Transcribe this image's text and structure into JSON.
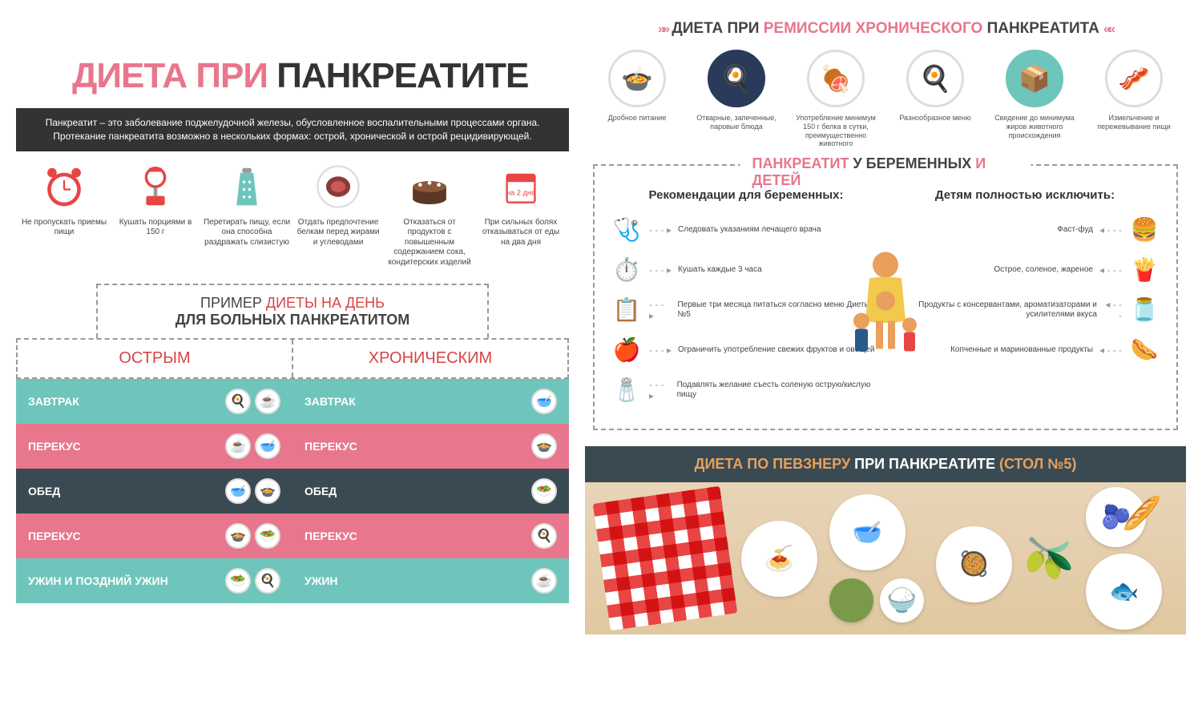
{
  "left": {
    "title_pink": "ДИЕТА ПРИ",
    "title_dark": "ПАНКРЕАТИТЕ",
    "subtitle": "Панкреатит – это заболевание поджелудочной железы, обусловленное воспалительными процессами органа. Протекание панкреатита возможно в нескольких формах: острой, хронической и острой рецидивирующей.",
    "tips": [
      {
        "icon": "clock",
        "color": "#e84545",
        "label": "Не пропускать приемы пищи"
      },
      {
        "icon": "scale",
        "color": "#e84545",
        "label": "Кушать порциями в 150 г"
      },
      {
        "icon": "grater",
        "color": "#6ec5bb",
        "label": "Перетирать пищу, если она способна раздражать слизистую"
      },
      {
        "icon": "meat",
        "color": "#8b3a3a",
        "label": "Отдать предпочтение белкам перед жирами и углеводами"
      },
      {
        "icon": "cake",
        "color": "#5a3825",
        "label": "Отказаться от продуктов с повышенным содержанием сока, кондитерских изделий"
      },
      {
        "icon": "calendar",
        "color": "#e84545",
        "label": "При сильных болях отказываться от еды на два дня"
      }
    ],
    "example_line1_a": "ПРИМЕР ",
    "example_line1_b": "ДИЕТЫ НА ДЕНЬ",
    "example_line2": "ДЛЯ БОЛЬНЫХ ПАНКРЕАТИТОМ",
    "col_acute": "ОСТРЫМ",
    "col_chronic": "ХРОНИЧЕСКИМ",
    "meals": [
      {
        "name": "ЗАВТРАК",
        "color": "mc-teal"
      },
      {
        "name": "ПЕРЕКУС",
        "color": "mc-pink"
      },
      {
        "name": "ОБЕД",
        "color": "mc-dark"
      },
      {
        "name": "ПЕРЕКУС",
        "color": "mc-pink"
      },
      {
        "name": "УЖИН И ПОЗДНИЙ УЖИН",
        "name2": "УЖИН",
        "color": "mc-teal"
      }
    ]
  },
  "right": {
    "remission_title_a": "ДИЕТА ПРИ ",
    "remission_title_b": "РЕМИССИИ ХРОНИЧЕСКОГО",
    "remission_title_c": " ПАНКРЕАТИТА",
    "remission_items": [
      {
        "emoji": "🍲",
        "label": "Дробное питание"
      },
      {
        "emoji": "🍳",
        "bg": "#2a3a5a",
        "label": "Отварные, запеченные, паровые блюда"
      },
      {
        "emoji": "🍖",
        "label": "Употребление минимум 150 г белка в сутки, преимущественно животного"
      },
      {
        "emoji": "🍳",
        "label": "Разнообразное меню"
      },
      {
        "emoji": "📦",
        "bg": "#6ec5bb",
        "label": "Сведение до минимума жиров животного происхождения"
      },
      {
        "emoji": "🥓",
        "label": "Измельчение и пережевывание пищи"
      }
    ],
    "preg_title_a": "ПАНКРЕАТИТ",
    "preg_title_b": " У БЕРЕМЕННЫХ ",
    "preg_title_c": "И ДЕТЕЙ",
    "preg_left_title": "Рекомендации для беременных:",
    "preg_right_title": "Детям полностью исключить:",
    "preg_left": [
      {
        "icon": "🩺",
        "text": "Следовать указаниям лечащего врача"
      },
      {
        "icon": "⏱️",
        "text": "Кушать каждые 3 часа"
      },
      {
        "icon": "📋",
        "text": "Первые три месяца питаться согласно меню Диеты №5"
      },
      {
        "icon": "🍎",
        "text": "Ограничить употребление свежих фруктов и овощей"
      },
      {
        "icon": "🧂",
        "text": "Подавлять желание съесть соленую острую/кислую пищу"
      }
    ],
    "preg_right": [
      {
        "icon": "🍔",
        "text": "Фаст-фуд"
      },
      {
        "icon": "🍟",
        "text": "Острое, соленое, жареное"
      },
      {
        "icon": "🫙",
        "text": "Продукты с консервантами, ароматизаторами и усилителями вкуса"
      },
      {
        "icon": "🌭",
        "text": "Копченные и маринованные продукты"
      }
    ],
    "pevzner_a": "ДИЕТА ПО ПЕВЗНЕРУ",
    "pevzner_b": " ПРИ ПАНКРЕАТИТЕ ",
    "pevzner_c": "(СТОЛ №5)"
  },
  "colors": {
    "pink": "#e8768c",
    "teal": "#6ec5bb",
    "dark": "#3a4a52",
    "red": "#d64545",
    "orange": "#e8a05c"
  }
}
